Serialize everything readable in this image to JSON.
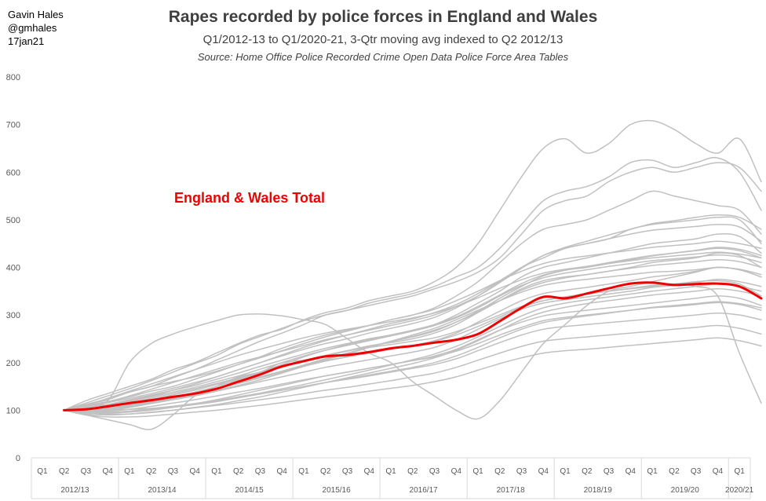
{
  "author": {
    "name": "Gavin Hales",
    "handle": "@gmhales",
    "date": "17jan21"
  },
  "chart_data": {
    "type": "line",
    "title": "Rapes recorded by police forces in England and Wales",
    "subtitle": "Q1/2012-13 to Q1/2020-21, 3-Qtr moving avg indexed to Q2 2012/13",
    "source": "Source: Home Office Police Recorded Crime Open Data Police Force Area Tables",
    "xlabel": "",
    "ylabel": "",
    "ylim": [
      0,
      800
    ],
    "yticks": [
      0,
      100,
      200,
      300,
      400,
      500,
      600,
      700,
      800
    ],
    "grid": false,
    "quarter_labels": [
      "Q1",
      "Q2",
      "Q3",
      "Q4",
      "Q1",
      "Q2",
      "Q3",
      "Q4",
      "Q1",
      "Q2",
      "Q3",
      "Q4",
      "Q1",
      "Q2",
      "Q3",
      "Q4",
      "Q1",
      "Q2",
      "Q3",
      "Q4",
      "Q1",
      "Q2",
      "Q3",
      "Q4",
      "Q1",
      "Q2",
      "Q3",
      "Q4",
      "Q1",
      "Q2",
      "Q3",
      "Q4",
      "Q1"
    ],
    "year_labels": [
      "2012/13",
      "2013/14",
      "2014/15",
      "2015/16",
      "2016/17",
      "2017/18",
      "2018/19",
      "2019/20",
      "2020/21"
    ],
    "highlight_color": "#ee0000",
    "force_color": "#c0c0c0",
    "annotation": "England & Wales Total",
    "series": [
      {
        "name": "England & Wales Total",
        "highlight": true,
        "start_index": 1,
        "values": [
          100,
          102,
          108,
          115,
          121,
          128,
          135,
          145,
          160,
          175,
          192,
          203,
          213,
          216,
          222,
          230,
          235,
          242,
          248,
          260,
          287,
          315,
          338,
          335,
          345,
          356,
          366,
          368,
          363,
          365,
          366,
          360,
          335
        ]
      },
      {
        "start_index": 1,
        "values": [
          100,
          112,
          122,
          138,
          150,
          168,
          185,
          205,
          225,
          245,
          262,
          280,
          300,
          310,
          320,
          330,
          340,
          355,
          370,
          390,
          420,
          470,
          520,
          540,
          550,
          580,
          600,
          610,
          600,
          610,
          620,
          610,
          560
        ]
      },
      {
        "start_index": 1,
        "values": [
          100,
          120,
          135,
          150,
          165,
          185,
          200,
          220,
          240,
          258,
          270,
          290,
          305,
          315,
          330,
          340,
          350,
          370,
          400,
          450,
          520,
          590,
          650,
          670,
          640,
          660,
          700,
          708,
          690,
          660,
          640,
          670,
          580
        ]
      },
      {
        "start_index": 1,
        "values": [
          100,
          115,
          130,
          145,
          162,
          180,
          198,
          215,
          238,
          255,
          272,
          288,
          300,
          310,
          325,
          335,
          345,
          360,
          380,
          400,
          440,
          490,
          540,
          560,
          570,
          590,
          620,
          625,
          610,
          620,
          630,
          600,
          520
        ]
      },
      {
        "start_index": 1,
        "values": [
          100,
          110,
          118,
          128,
          140,
          150,
          165,
          180,
          196,
          212,
          230,
          245,
          258,
          268,
          278,
          290,
          300,
          315,
          340,
          370,
          410,
          450,
          480,
          490,
          500,
          520,
          540,
          560,
          550,
          540,
          530,
          520,
          470
        ]
      },
      {
        "start_index": 1,
        "values": [
          100,
          108,
          116,
          125,
          135,
          146,
          158,
          170,
          185,
          200,
          214,
          228,
          240,
          250,
          262,
          272,
          282,
          295,
          315,
          340,
          370,
          400,
          420,
          440,
          450,
          460,
          480,
          490,
          495,
          500,
          505,
          500,
          450
        ]
      },
      {
        "start_index": 1,
        "values": [
          100,
          105,
          112,
          122,
          132,
          142,
          152,
          165,
          178,
          192,
          205,
          218,
          230,
          240,
          250,
          258,
          268,
          280,
          300,
          325,
          350,
          380,
          400,
          410,
          420,
          430,
          440,
          450,
          455,
          460,
          470,
          465,
          430
        ]
      },
      {
        "start_index": 1,
        "values": [
          100,
          103,
          108,
          115,
          125,
          135,
          145,
          156,
          168,
          180,
          192,
          204,
          215,
          225,
          235,
          242,
          250,
          262,
          280,
          305,
          330,
          355,
          372,
          380,
          385,
          392,
          400,
          410,
          415,
          420,
          430,
          425,
          400
        ]
      },
      {
        "start_index": 1,
        "values": [
          100,
          100,
          104,
          110,
          118,
          126,
          135,
          145,
          156,
          168,
          180,
          192,
          203,
          212,
          220,
          228,
          236,
          246,
          262,
          285,
          308,
          330,
          345,
          352,
          358,
          365,
          372,
          380,
          385,
          392,
          400,
          395,
          380
        ]
      },
      {
        "start_index": 1,
        "values": [
          100,
          98,
          100,
          106,
          114,
          122,
          130,
          140,
          150,
          160,
          170,
          180,
          190,
          198,
          206,
          214,
          222,
          232,
          248,
          270,
          292,
          312,
          325,
          332,
          338,
          344,
          350,
          358,
          362,
          368,
          375,
          370,
          360
        ]
      },
      {
        "start_index": 1,
        "values": [
          100,
          96,
          98,
          102,
          108,
          115,
          122,
          130,
          138,
          146,
          155,
          164,
          172,
          180,
          188,
          196,
          204,
          214,
          228,
          248,
          268,
          285,
          298,
          305,
          310,
          315,
          320,
          325,
          330,
          335,
          340,
          335,
          320
        ]
      },
      {
        "start_index": 1,
        "values": [
          100,
          94,
          95,
          98,
          103,
          108,
          114,
          120,
          127,
          134,
          142,
          150,
          158,
          165,
          172,
          180,
          188,
          196,
          208,
          225,
          242,
          258,
          270,
          276,
          280,
          284,
          288,
          292,
          296,
          300,
          304,
          300,
          290
        ]
      },
      {
        "start_index": 1,
        "values": [
          100,
          92,
          90,
          92,
          96,
          100,
          105,
          110,
          116,
          122,
          128,
          135,
          142,
          148,
          155,
          162,
          170,
          178,
          190,
          205,
          220,
          234,
          245,
          250,
          254,
          258,
          262,
          266,
          270,
          274,
          278,
          272,
          260
        ]
      },
      {
        "start_index": 1,
        "values": [
          100,
          90,
          86,
          86,
          88,
          92,
          96,
          100,
          105,
          110,
          116,
          122,
          128,
          134,
          140,
          146,
          152,
          160,
          170,
          184,
          198,
          210,
          220,
          225,
          228,
          232,
          236,
          240,
          244,
          248,
          252,
          246,
          235
        ]
      },
      {
        "start_index": 1,
        "values": [
          100,
          90,
          80,
          70,
          60,
          90,
          130,
          150,
          170,
          180,
          200,
          205,
          215,
          225,
          232,
          238,
          245,
          252,
          265,
          282,
          300,
          318,
          330,
          338,
          345,
          350,
          355,
          360,
          365,
          370,
          372,
          365,
          340
        ]
      },
      {
        "start_index": 1,
        "values": [
          100,
          110,
          120,
          200,
          240,
          260,
          275,
          288,
          300,
          302,
          298,
          290,
          280,
          250,
          220,
          200,
          160,
          130,
          100,
          82,
          120,
          180,
          240,
          280,
          320,
          350,
          360,
          370,
          380,
          390,
          400,
          395,
          380
        ]
      },
      {
        "start_index": 1,
        "values": [
          100,
          102,
          104,
          110,
          116,
          124,
          132,
          142,
          152,
          164,
          178,
          192,
          206,
          218,
          232,
          245,
          258,
          272,
          290,
          310,
          330,
          348,
          362,
          370,
          375,
          380,
          385,
          390,
          392,
          395,
          400,
          396,
          385
        ]
      },
      {
        "start_index": 1,
        "values": [
          100,
          106,
          112,
          120,
          130,
          142,
          155,
          170,
          185,
          200,
          216,
          232,
          246,
          258,
          270,
          282,
          292,
          305,
          322,
          345,
          372,
          400,
          425,
          440,
          450,
          460,
          470,
          478,
          482,
          486,
          490,
          485,
          455
        ]
      },
      {
        "start_index": 1,
        "values": [
          100,
          104,
          108,
          114,
          122,
          132,
          142,
          154,
          166,
          178,
          190,
          202,
          214,
          224,
          234,
          244,
          254,
          266,
          285,
          308,
          335,
          360,
          382,
          394,
          402,
          410,
          418,
          425,
          430,
          435,
          440,
          435,
          420
        ]
      },
      {
        "start_index": 1,
        "values": [
          100,
          108,
          118,
          130,
          144,
          158,
          172,
          186,
          200,
          212,
          224,
          236,
          248,
          258,
          268,
          278,
          288,
          300,
          318,
          340,
          368,
          398,
          425,
          442,
          455,
          468,
          480,
          492,
          498,
          505,
          510,
          505,
          480
        ]
      },
      {
        "start_index": 1,
        "values": [
          100,
          95,
          92,
          92,
          95,
          100,
          106,
          112,
          120,
          128,
          138,
          148,
          158,
          168,
          178,
          188,
          198,
          210,
          226,
          246,
          268,
          290,
          306,
          316,
          324,
          330,
          336,
          342,
          346,
          350,
          355,
          350,
          340
        ]
      },
      {
        "start_index": 1,
        "values": [
          100,
          98,
          102,
          108,
          116,
          124,
          134,
          145,
          158,
          170,
          182,
          195,
          208,
          220,
          232,
          244,
          255,
          268,
          285,
          306,
          330,
          352,
          368,
          378,
          385,
          392,
          398,
          404,
          408,
          412,
          416,
          412,
          400
        ]
      },
      {
        "start_index": 1,
        "values": [
          100,
          112,
          124,
          138,
          150,
          160,
          170,
          182,
          196,
          210,
          225,
          240,
          254,
          266,
          278,
          290,
          300,
          312,
          330,
          350,
          372,
          392,
          408,
          418,
          424,
          430,
          436,
          442,
          446,
          450,
          455,
          450,
          440
        ]
      },
      {
        "start_index": 1,
        "values": [
          100,
          96,
          94,
          96,
          100,
          106,
          112,
          120,
          128,
          136,
          145,
          154,
          164,
          174,
          184,
          195,
          206,
          218,
          234,
          254,
          276,
          298,
          315,
          325,
          332,
          338,
          344,
          350,
          355,
          360,
          365,
          360,
          350
        ]
      },
      {
        "start_index": 1,
        "values": [
          100,
          104,
          110,
          118,
          128,
          138,
          148,
          160,
          172,
          186,
          200,
          214,
          226,
          236,
          246,
          256,
          266,
          278,
          294,
          315,
          340,
          362,
          378,
          388,
          395,
          402,
          408,
          414,
          418,
          422,
          426,
          422,
          410
        ]
      },
      {
        "start_index": 1,
        "values": [
          100,
          100,
          100,
          102,
          104,
          108,
          112,
          118,
          126,
          134,
          142,
          150,
          158,
          166,
          174,
          182,
          190,
          200,
          214,
          232,
          252,
          270,
          284,
          292,
          298,
          304,
          310,
          316,
          320,
          324,
          328,
          324,
          315
        ]
      },
      {
        "start_index": 1,
        "values": [
          100,
          110,
          125,
          140,
          155,
          170,
          185,
          200,
          215,
          228,
          240,
          252,
          262,
          270,
          278,
          286,
          294,
          304,
          318,
          336,
          356,
          374,
          388,
          396,
          402,
          408,
          414,
          420,
          424,
          428,
          432,
          428,
          420
        ]
      },
      {
        "start_index": 1,
        "values": [
          100,
          102,
          106,
          112,
          120,
          128,
          138,
          150,
          164,
          180,
          196,
          212,
          226,
          238,
          248,
          258,
          268,
          280,
          296,
          318,
          342,
          366,
          384,
          394,
          400,
          408,
          416,
          424,
          430,
          436,
          442,
          438,
          425
        ]
      },
      {
        "start_index": 1,
        "values": [
          100,
          98,
          96,
          98,
          102,
          108,
          114,
          122,
          132,
          142,
          152,
          162,
          172,
          180,
          188,
          196,
          204,
          212,
          224,
          240,
          258,
          274,
          288,
          295,
          300,
          305,
          310,
          315,
          318,
          322,
          326,
          322,
          310
        ]
      },
      {
        "start_index": 1,
        "values": [
          100,
          102,
          105,
          110,
          118,
          126,
          135,
          146,
          158,
          170,
          182,
          194,
          204,
          212,
          220,
          228,
          236,
          245,
          258,
          276,
          296,
          316,
          330,
          338,
          344,
          350,
          356,
          362,
          365,
          360,
          340,
          220,
          115
        ]
      }
    ]
  }
}
